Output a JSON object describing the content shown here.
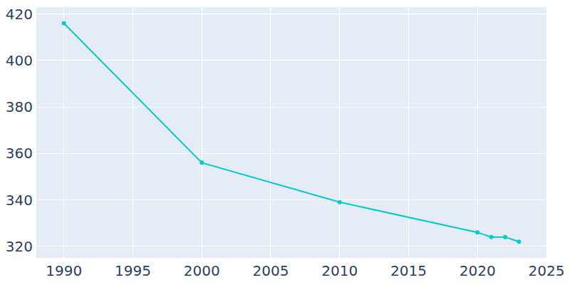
{
  "chart_data": {
    "type": "line",
    "x": [
      1990,
      2000,
      2010,
      2020,
      2021,
      2022,
      2023
    ],
    "values": [
      416,
      356,
      339,
      326,
      324,
      324,
      322
    ],
    "color": "#00cccc",
    "marker": "circle",
    "line_style": "solid",
    "xlim": [
      1988,
      2025
    ],
    "xticks": [
      1990,
      1995,
      2000,
      2005,
      2010,
      2015,
      2020,
      2025
    ],
    "ylim": [
      315,
      423
    ],
    "yticks": [
      320,
      340,
      360,
      380,
      400,
      420
    ],
    "grid": true
  }
}
